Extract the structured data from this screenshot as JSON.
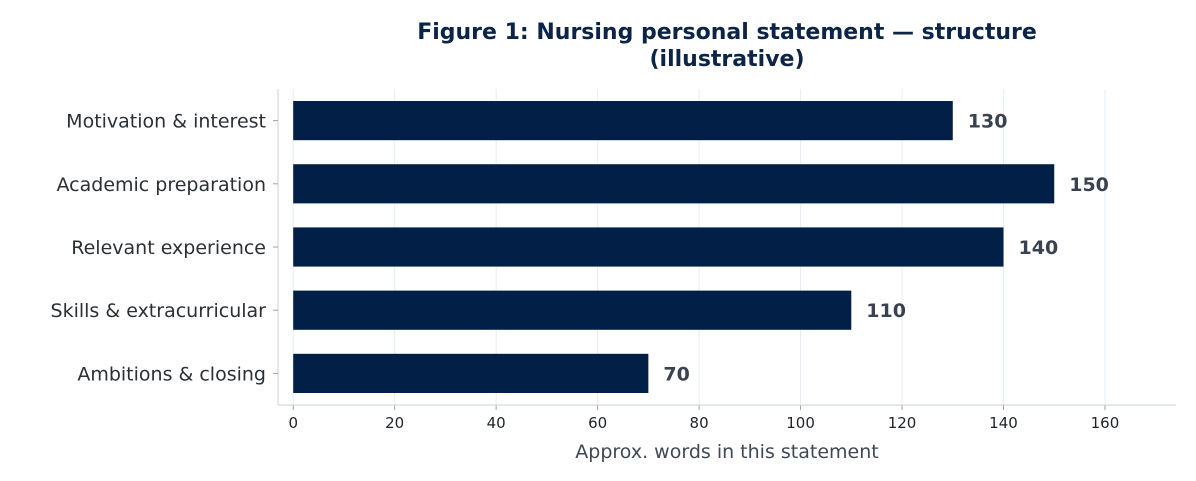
{
  "chart_data": {
    "type": "bar",
    "orientation": "horizontal",
    "title_lines": [
      "Figure 1: Nursing personal statement — structure",
      "(illustrative)"
    ],
    "categories": [
      "Motivation & interest",
      "Academic preparation",
      "Relevant experience",
      "Skills & extracurricular",
      "Ambitions & closing"
    ],
    "values": [
      130,
      150,
      140,
      110,
      70
    ],
    "xlabel": "Approx. words in this statement",
    "ylabel": "",
    "xlim": [
      -3,
      174
    ],
    "xticks": [
      0,
      20,
      40,
      60,
      80,
      100,
      120,
      140,
      160
    ],
    "grid": true,
    "legend": "none",
    "colors": {
      "bar": "#022047",
      "title": "#0b2447",
      "grid": "#e6edf4",
      "axis": "#d4d9df"
    }
  }
}
